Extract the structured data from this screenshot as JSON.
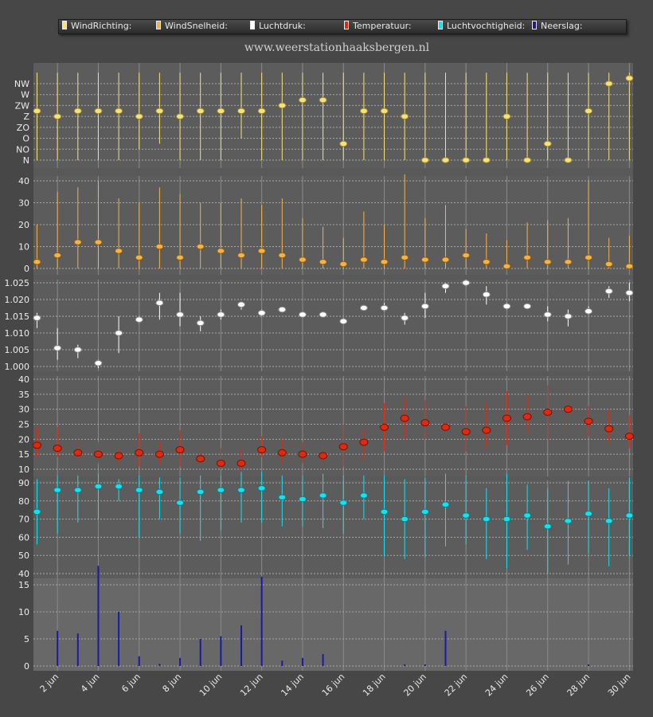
{
  "site_title": "www.weerstationhaaksbergen.nl",
  "legend": [
    {
      "label": "WindRichting:",
      "color": "#f7e27a"
    },
    {
      "label": "WindSnelheid:",
      "color": "#f5b24a"
    },
    {
      "label": "Luchtdruk:",
      "color": "#ffffff"
    },
    {
      "label": "Temperatuur:",
      "color": "#e02a10"
    },
    {
      "label": "Luchtvochtigheid:",
      "color": "#19e0ef"
    },
    {
      "label": "Neerslag:",
      "color": "#1a1aa8"
    }
  ],
  "colors": {
    "background": "#474747",
    "plot_area": "#5c5c5c",
    "grid": "#9a9a9a"
  },
  "chart_data": [
    {
      "type": "scatter",
      "title": "WindRichting",
      "ytick_labels": [
        "N",
        "NO",
        "O",
        "ZO",
        "Z",
        "ZW",
        "W",
        "NW"
      ],
      "ylim": [
        0,
        8
      ],
      "x": [
        1,
        2,
        3,
        4,
        5,
        6,
        7,
        8,
        9,
        10,
        11,
        12,
        13,
        14,
        15,
        16,
        17,
        18,
        19,
        20,
        21,
        22,
        23,
        24,
        25,
        26,
        27,
        28,
        29,
        30
      ],
      "values": [
        4.5,
        4,
        4.5,
        4.5,
        4.5,
        4,
        4.5,
        4,
        4.5,
        4.5,
        4.5,
        4.5,
        5,
        5.5,
        5.5,
        1.5,
        4.5,
        4.5,
        4,
        0,
        0,
        0,
        0,
        4,
        0,
        1.5,
        0,
        4.5,
        7,
        7.5
      ],
      "low": [
        0,
        0,
        0,
        0,
        0,
        1,
        1.5,
        0,
        0,
        0,
        2,
        0,
        0,
        0,
        0,
        0,
        0,
        0,
        0,
        0,
        0,
        0,
        0,
        0,
        0,
        0,
        0,
        0,
        0,
        0
      ],
      "high": [
        8,
        8,
        8,
        8,
        8,
        8,
        8,
        8,
        8,
        8,
        8,
        8,
        8,
        8,
        8,
        8,
        8,
        8,
        8,
        8,
        8,
        8,
        8,
        8,
        8,
        8,
        8,
        8,
        8,
        8
      ]
    },
    {
      "type": "scatter",
      "title": "WindSnelheid",
      "ytick_labels": [
        "0",
        "10",
        "20",
        "30",
        "40"
      ],
      "ylim": [
        0,
        44
      ],
      "x": [
        1,
        2,
        3,
        4,
        5,
        6,
        7,
        8,
        9,
        10,
        11,
        12,
        13,
        14,
        15,
        16,
        17,
        18,
        19,
        20,
        21,
        22,
        23,
        24,
        25,
        26,
        27,
        28,
        29,
        30
      ],
      "values": [
        3,
        6,
        12,
        12,
        8,
        5,
        10,
        5,
        10,
        8,
        6,
        8,
        6,
        4,
        3,
        2,
        4,
        3,
        5,
        4,
        4,
        6,
        3,
        1,
        5,
        3,
        3,
        5,
        2,
        1
      ],
      "low": [
        0,
        0,
        0,
        0,
        0,
        0,
        0,
        0,
        0,
        0,
        0,
        0,
        0,
        0,
        0,
        0,
        0,
        0,
        0,
        0,
        0,
        0,
        0,
        0,
        0,
        0,
        0,
        0,
        0,
        0
      ],
      "high": [
        20,
        35,
        37,
        40,
        32,
        30,
        37,
        34,
        30,
        30,
        32,
        29,
        32,
        23,
        19,
        14,
        26,
        20,
        43,
        23,
        29,
        18,
        16,
        13,
        21,
        22,
        23,
        40,
        14,
        15
      ]
    },
    {
      "type": "scatter",
      "title": "Luchtdruk",
      "ytick_labels": [
        "1.000",
        "1.005",
        "1.010",
        "1.015",
        "1.020",
        "1.025"
      ],
      "ylim": [
        0.997,
        1.027
      ],
      "x": [
        1,
        2,
        3,
        4,
        5,
        6,
        7,
        8,
        9,
        10,
        11,
        12,
        13,
        14,
        15,
        16,
        17,
        18,
        19,
        20,
        21,
        22,
        23,
        24,
        25,
        26,
        27,
        28,
        29,
        30
      ],
      "values": [
        1.0145,
        1.0055,
        1.005,
        1.001,
        1.01,
        1.014,
        1.019,
        1.0155,
        1.013,
        1.0155,
        1.0185,
        1.016,
        1.017,
        1.0155,
        1.0155,
        1.0135,
        1.0175,
        1.0175,
        1.0145,
        1.018,
        1.024,
        1.025,
        1.0215,
        1.018,
        1.018,
        1.0155,
        1.015,
        1.0165,
        1.0225,
        1.022
      ],
      "low": [
        1.0115,
        1.002,
        1.0025,
        0.9995,
        1.004,
        1.013,
        1.014,
        1.012,
        1.0105,
        1.014,
        1.017,
        1.015,
        1.0165,
        1.015,
        1.015,
        1.013,
        1.017,
        1.0165,
        1.0125,
        1.0145,
        1.022,
        1.024,
        1.0185,
        1.017,
        1.0175,
        1.0135,
        1.012,
        1.0155,
        1.0205,
        1.0195
      ],
      "high": [
        1.016,
        1.0115,
        1.0065,
        1.002,
        1.015,
        1.015,
        1.022,
        1.022,
        1.015,
        1.017,
        1.019,
        1.017,
        1.0175,
        1.016,
        1.016,
        1.0145,
        1.018,
        1.019,
        1.016,
        1.022,
        1.025,
        1.026,
        1.024,
        1.019,
        1.0185,
        1.018,
        1.017,
        1.018,
        1.024,
        1.025
      ]
    },
    {
      "type": "scatter",
      "title": "Temperatuur",
      "ytick_labels": [
        "10",
        "15",
        "20",
        "25",
        "30",
        "35",
        "40"
      ],
      "ylim": [
        7,
        42
      ],
      "x": [
        1,
        2,
        3,
        4,
        5,
        6,
        7,
        8,
        9,
        10,
        11,
        12,
        13,
        14,
        15,
        16,
        17,
        18,
        19,
        20,
        21,
        22,
        23,
        24,
        25,
        26,
        27,
        28,
        29,
        30
      ],
      "values": [
        18,
        17,
        15.5,
        15,
        14.5,
        15.5,
        15,
        16.5,
        13.5,
        12,
        12,
        16.5,
        15.5,
        15,
        14.5,
        17.5,
        19,
        24,
        27,
        25.5,
        24,
        22.5,
        23,
        27,
        27.5,
        29,
        30,
        26,
        23.5,
        21
      ],
      "low": [
        14,
        14,
        13,
        12,
        12,
        11,
        12,
        11,
        11,
        10,
        8,
        14,
        12,
        12,
        11,
        11,
        13,
        16,
        20,
        20,
        19,
        16,
        17,
        18,
        22,
        20,
        22,
        21,
        19,
        17
      ],
      "high": [
        24,
        24,
        20,
        19,
        17,
        22,
        19,
        23,
        18,
        17,
        17,
        21,
        20,
        19,
        18,
        25,
        23,
        32,
        34,
        33,
        30,
        31,
        32,
        36,
        35,
        38,
        37,
        31,
        30,
        28
      ]
    },
    {
      "type": "scatter",
      "title": "Luchtvochtigheid",
      "ytick_labels": [
        "40",
        "50",
        "60",
        "70",
        "80",
        "90"
      ],
      "ylim": [
        38,
        96
      ],
      "x": [
        1,
        2,
        3,
        4,
        5,
        6,
        7,
        8,
        9,
        10,
        11,
        12,
        13,
        14,
        15,
        16,
        17,
        18,
        19,
        20,
        21,
        22,
        23,
        24,
        25,
        26,
        27,
        28,
        29,
        30
      ],
      "values": [
        74,
        86,
        86,
        88,
        88,
        86,
        85,
        79,
        85,
        86,
        86,
        87,
        82,
        81,
        83,
        79,
        83,
        74,
        70,
        74,
        78,
        72,
        70,
        70,
        72,
        66,
        69,
        73,
        69,
        72
      ],
      "low": [
        56,
        62,
        68,
        70,
        80,
        60,
        70,
        62,
        58,
        64,
        68,
        68,
        66,
        66,
        65,
        62,
        70,
        50,
        48,
        49,
        55,
        56,
        48,
        43,
        53,
        40,
        45,
        51,
        44,
        50
      ],
      "high": [
        92,
        94,
        94,
        95,
        92,
        94,
        93,
        93,
        94,
        94,
        96,
        96,
        94,
        94,
        95,
        94,
        94,
        94,
        92,
        93,
        95,
        94,
        87,
        95,
        89,
        87,
        91,
        91,
        87,
        93
      ]
    },
    {
      "type": "bar",
      "title": "Neerslag",
      "ytick_labels": [
        "0",
        "5",
        "10",
        "15"
      ],
      "ylim": [
        -1,
        18.5
      ],
      "x": [
        1,
        2,
        3,
        4,
        5,
        6,
        7,
        8,
        9,
        10,
        11,
        12,
        13,
        14,
        15,
        16,
        17,
        18,
        19,
        20,
        21,
        22,
        23,
        24,
        25,
        26,
        27,
        28,
        29,
        30
      ],
      "values": [
        0,
        6.5,
        6,
        18.5,
        10,
        1.8,
        0.4,
        1.5,
        5,
        5.5,
        7.5,
        16.5,
        1,
        1.5,
        2.2,
        0,
        0,
        0,
        0.3,
        0.3,
        6.5,
        0,
        0,
        0,
        0,
        0,
        0,
        0.3,
        0,
        0
      ]
    }
  ],
  "x_axis": {
    "tick_labels": [
      "2 jun",
      "4 jun",
      "6 jun",
      "8 jun",
      "10 jun",
      "12 jun",
      "14 jun",
      "16 jun",
      "18 jun",
      "20 jun",
      "22 jun",
      "24 jun",
      "26 jun",
      "28 jun",
      "30 jun"
    ]
  }
}
